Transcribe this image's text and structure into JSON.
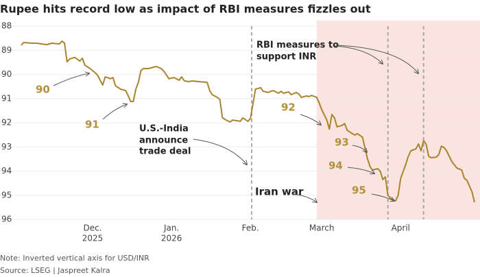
{
  "chart_data": {
    "type": "line",
    "title": "Rupee hits record low as impact of RBI measures fizzles out",
    "note": "Note: Inverted vertical axis for USD/INR",
    "source": "Source: LSEG | Jaspreet Kalra",
    "color": "#a8842c",
    "x": [
      -28,
      -27,
      -24,
      -22,
      -18,
      -16,
      -13,
      -12,
      -11,
      -10,
      -9,
      -7,
      -5,
      -4,
      -3,
      -1,
      1,
      2,
      4,
      5,
      7,
      8,
      9,
      11,
      13,
      14,
      15,
      16,
      17,
      18,
      19,
      20,
      22,
      23,
      25,
      27,
      28,
      30,
      32,
      34,
      35,
      36,
      38,
      39,
      42,
      45,
      46,
      47,
      49,
      50,
      51,
      53,
      54,
      55,
      57,
      58,
      59,
      61,
      62,
      64,
      65,
      66,
      67,
      69,
      70,
      71,
      73,
      74,
      75,
      77,
      78,
      80,
      81,
      82,
      84,
      85,
      86,
      88,
      89,
      90,
      92,
      93,
      94,
      95,
      96,
      98,
      99,
      100,
      102,
      103,
      104,
      106,
      107,
      108,
      109,
      110,
      112,
      113,
      114,
      115,
      116,
      118,
      119,
      120,
      121,
      123,
      124,
      125,
      127,
      128,
      129,
      130,
      131,
      132,
      133,
      135,
      136,
      137,
      138,
      139,
      141,
      142,
      143,
      145,
      146,
      147,
      149,
      150
    ],
    "values": [
      88.79,
      88.68,
      88.71,
      88.71,
      88.77,
      88.71,
      88.74,
      88.62,
      88.71,
      89.48,
      89.36,
      89.3,
      89.45,
      89.33,
      89.62,
      89.76,
      89.93,
      90.04,
      90.44,
      90.1,
      90.18,
      90.13,
      90.47,
      90.61,
      90.67,
      90.89,
      91.12,
      91.12,
      90.61,
      90.33,
      89.84,
      89.76,
      89.76,
      89.73,
      89.67,
      89.76,
      89.87,
      90.18,
      90.13,
      90.24,
      90.1,
      90.27,
      90.3,
      90.27,
      90.3,
      90.33,
      90.67,
      90.84,
      90.95,
      91.04,
      91.8,
      91.92,
      91.97,
      91.89,
      91.92,
      91.94,
      91.8,
      91.94,
      91.83,
      90.61,
      90.58,
      90.55,
      90.7,
      90.75,
      90.7,
      90.67,
      90.78,
      90.7,
      90.78,
      90.72,
      90.84,
      90.75,
      90.81,
      90.95,
      90.89,
      90.92,
      90.87,
      90.95,
      91.18,
      91.46,
      91.89,
      92.26,
      91.66,
      91.8,
      92.17,
      92.11,
      92.03,
      92.31,
      92.45,
      92.51,
      92.45,
      92.6,
      93.05,
      93.5,
      93.82,
      93.96,
      93.9,
      94.01,
      94.35,
      94.24,
      95.01,
      95.2,
      95.23,
      95.01,
      94.3,
      93.73,
      93.39,
      93.16,
      93.08,
      92.88,
      93.16,
      92.74,
      92.88,
      93.39,
      93.45,
      93.42,
      93.31,
      92.97,
      93.02,
      93.16,
      93.59,
      93.73,
      93.87,
      93.96,
      94.3,
      94.38,
      94.86,
      95.29
    ],
    "xlim": [
      -28,
      150
    ],
    "xticks": [
      {
        "value": 0,
        "label": "Dec."
      },
      {
        "value": 31,
        "label": "Jan."
      },
      {
        "value": 62,
        "label": "Feb."
      },
      {
        "value": 90,
        "label": "March"
      },
      {
        "value": 121,
        "label": "April"
      }
    ],
    "xtick_years": [
      {
        "value": 0,
        "label": "2025"
      },
      {
        "value": 31,
        "label": "2026"
      }
    ],
    "ylim": [
      88,
      96
    ],
    "y_inverted": true,
    "yticks": [
      88,
      89,
      90,
      91,
      92,
      93,
      94,
      95,
      96
    ],
    "grid": true,
    "shaded_from": 88,
    "event_lines": [
      62.5,
      116,
      130
    ],
    "level_labels": [
      90,
      91,
      92,
      93,
      94,
      95
    ],
    "annotations": [
      {
        "lines": [
          "U.S.-India",
          "announce",
          "trade deal"
        ]
      },
      {
        "lines": [
          "RBI measures to",
          "support INR"
        ]
      },
      {
        "lines": [
          "Iran war"
        ]
      }
    ]
  }
}
